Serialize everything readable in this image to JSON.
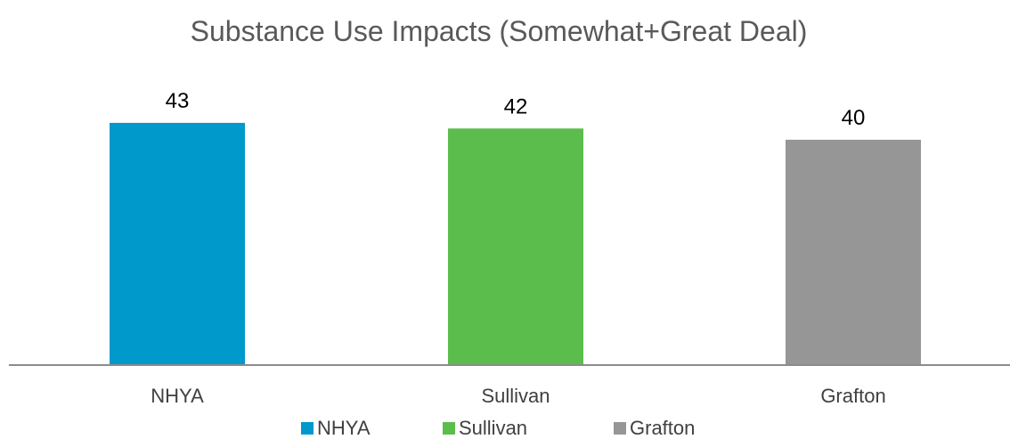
{
  "chart_data": {
    "type": "bar",
    "title": "Substance Use Impacts (Somewhat+Great Deal)",
    "xlabel": "",
    "ylabel": "",
    "categories": [
      "NHYA",
      "Sullivan",
      "Grafton"
    ],
    "values": [
      43,
      42,
      40
    ],
    "colors": [
      "#0099CC",
      "#5BBD4B",
      "#969696"
    ],
    "legend": {
      "position": "bottom",
      "entries": [
        "NHYA",
        "Sullivan",
        "Grafton"
      ]
    },
    "ylim": [
      0,
      49
    ],
    "grid": false,
    "data_labels": true
  },
  "style": {
    "axis_color": "#8c8c8c",
    "title_color": "#595959",
    "text_color": "#000000",
    "category_label_color": "#404040"
  }
}
